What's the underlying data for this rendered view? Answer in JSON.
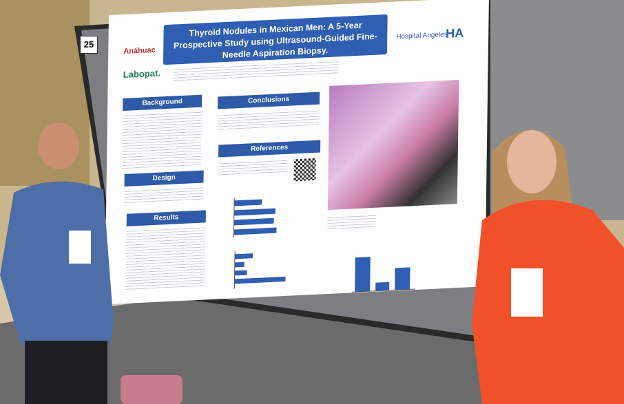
{
  "board_number": "25",
  "poster": {
    "title": "Thyroid Nodules in Mexican Men: A 5-Year Prospective Study using Ultrasound-Guided Fine-Needle Aspiration Biopsy.",
    "logos": [
      "Anáhuac",
      "Labopat.",
      "Hospital Angeles",
      "HA"
    ],
    "sections": [
      "Background",
      "Design",
      "Results",
      "Conclusions",
      "References"
    ]
  }
}
